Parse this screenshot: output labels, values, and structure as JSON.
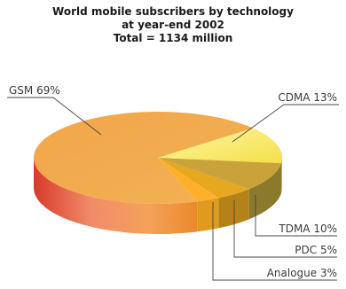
{
  "chart_data": {
    "type": "pie",
    "title_lines": [
      "World mobile subscribers by technology",
      "at year-end 2002",
      "Total = 1134 million"
    ],
    "categories": [
      "GSM",
      "CDMA",
      "TDMA",
      "PDC",
      "Analogue"
    ],
    "values": [
      69,
      13,
      10,
      5,
      3
    ],
    "labels": [
      "GSM 69%",
      "CDMA 13%",
      "TDMA 10%",
      "PDC 5%",
      "Analogue 3%"
    ],
    "colors": [
      "#f0a04a",
      "#f7ea6a",
      "#c9a23a",
      "#e6a820",
      "#ffb02a"
    ],
    "unit": "%"
  }
}
